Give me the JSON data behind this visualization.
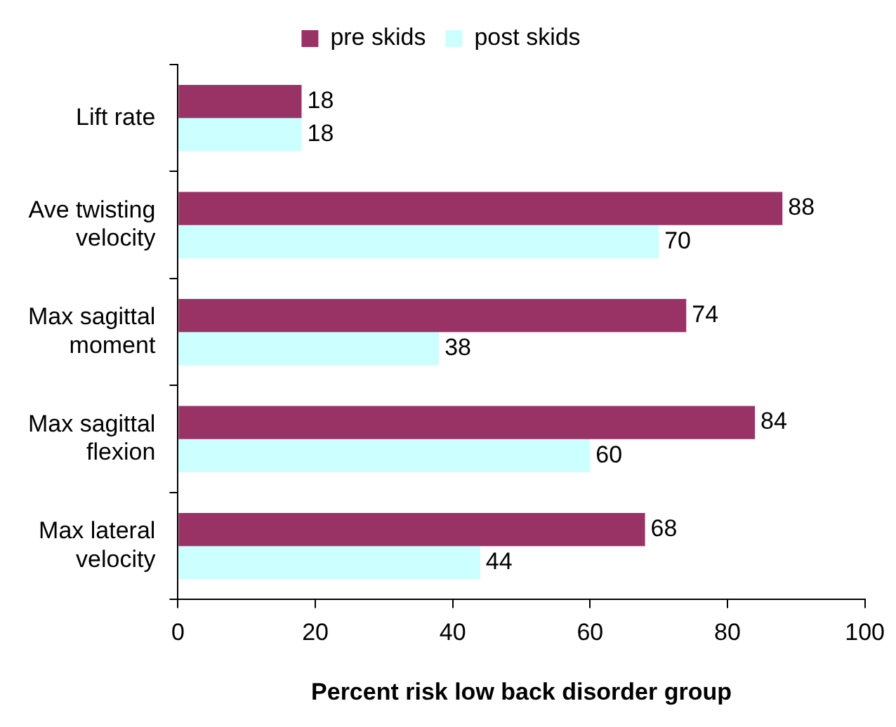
{
  "chart_data": {
    "type": "bar",
    "orientation": "horizontal",
    "categories": [
      "Lift rate",
      "Ave twisting velocity",
      "Max sagittal moment",
      "Max sagittal flexion",
      "Max lateral velocity"
    ],
    "series": [
      {
        "name": "pre skids",
        "color": "#993366",
        "values": [
          18,
          88,
          74,
          84,
          68
        ]
      },
      {
        "name": "post skids",
        "color": "#ccffff",
        "values": [
          18,
          70,
          38,
          60,
          44
        ]
      }
    ],
    "xlabel": "Percent risk low back disorder group",
    "xlim": [
      0,
      100
    ],
    "xticks": [
      0,
      20,
      40,
      60,
      80,
      100
    ],
    "grid": false,
    "legend": "top",
    "data_labels": true
  }
}
